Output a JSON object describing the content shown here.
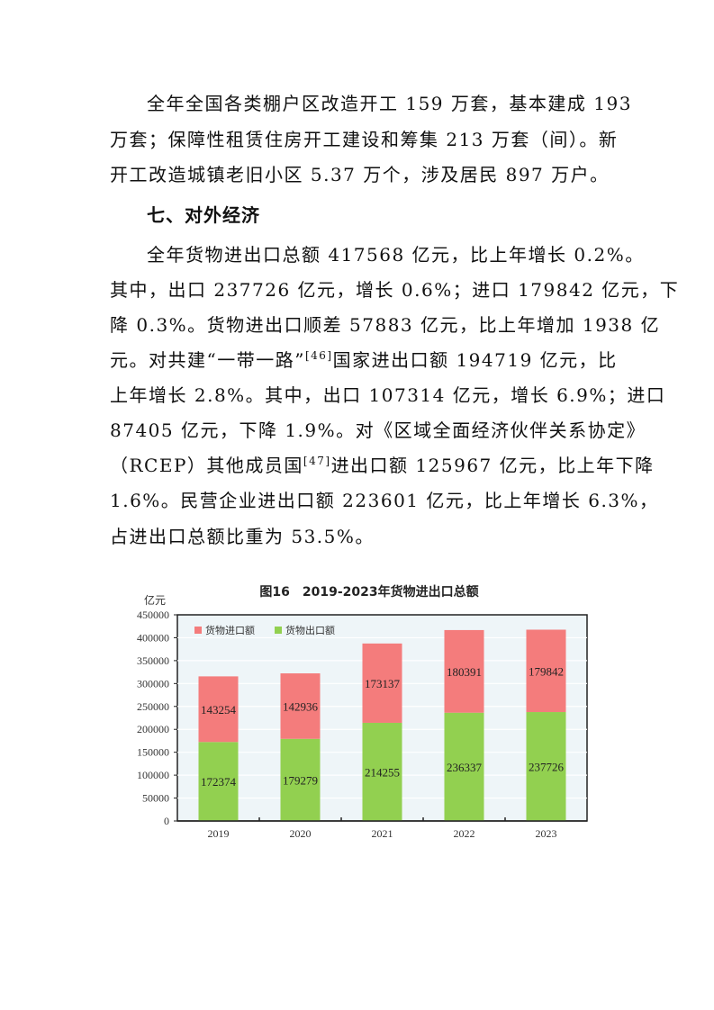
{
  "paragraph1": {
    "lines": [
      "全年全国各类棚户区改造开工 159 万套，基本建成 193",
      "万套；保障性租赁住房开工建设和筹集 213 万套（间）。新",
      "开工改造城镇老旧小区 5.37 万个，涉及居民 897 万户。"
    ]
  },
  "section_heading": "七、对外经济",
  "paragraph2": {
    "lines": [
      "全年货物进出口总额 417568 亿元，比上年增长 0.2%。",
      "其中，出口 237726 亿元，增长 0.6%；进口 179842 亿元，下",
      "降 0.3%。货物进出口顺差 57883 亿元，比上年增加 1938 亿",
      {
        "pre": "元。对共建“一带一路”",
        "sup": "[46]",
        "post": "国家进出口额 194719 亿元，比"
      },
      "上年增长 2.8%。其中，出口 107314 亿元，增长 6.9%；进口",
      "87405 亿元，下降 1.9%。对《区域全面经济伙伴关系协定》",
      {
        "pre": "（RCEP）其他成员国",
        "sup": "[47]",
        "post": "进出口额 125967 亿元，比上年下降"
      },
      "1.6%。民营企业进出口额 223601 亿元，比上年增长 6.3%，",
      "占进出口总额比重为 53.5%。"
    ]
  },
  "chart_data": {
    "type": "bar",
    "stacked": true,
    "title": "图16　2019-2023年货物进出口总额",
    "ylabel": "亿元",
    "xlabel": "",
    "ylim": [
      0,
      450000
    ],
    "yticks": [
      0,
      50000,
      100000,
      150000,
      200000,
      250000,
      300000,
      350000,
      400000,
      450000
    ],
    "grid": true,
    "legend_position": "top-left",
    "categories": [
      "2019",
      "2020",
      "2021",
      "2022",
      "2023"
    ],
    "series": [
      {
        "name": "货物出口额",
        "color": "#92d050",
        "values": [
          172374,
          179279,
          214255,
          236337,
          237726
        ]
      },
      {
        "name": "货物进口额",
        "color": "#f47c7c",
        "values": [
          143254,
          142936,
          173137,
          180391,
          179842
        ]
      }
    ],
    "legend_order": [
      "货物进口额",
      "货物出口额"
    ],
    "plot_background": "#eef5f8"
  }
}
